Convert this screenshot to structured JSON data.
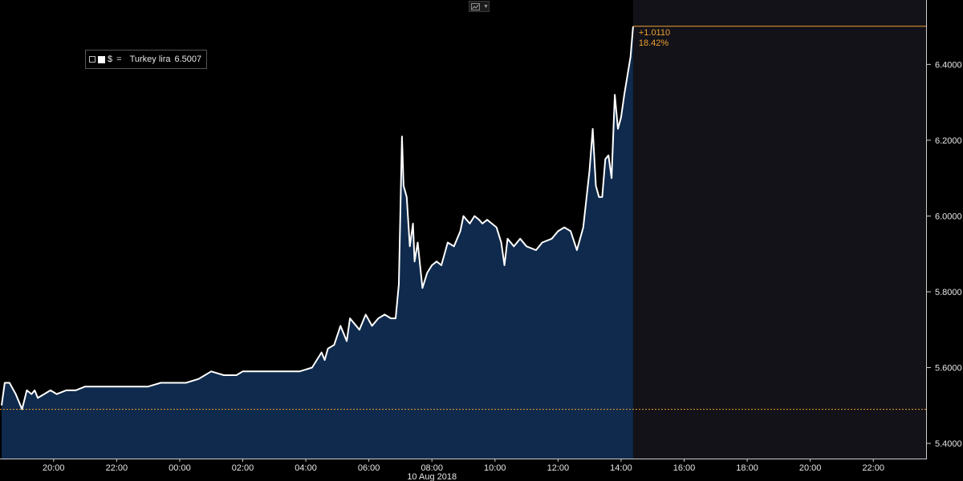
{
  "toolbar": {
    "chart_type_icon": "line-chart-icon",
    "dropdown_icon": "chevron-down-icon"
  },
  "legend": {
    "toggle_icon": "expand-icon",
    "series_color": "#ffffff",
    "symbol": "$",
    "equals": "=",
    "name": "Turkey lira",
    "value": "6.5007"
  },
  "chart_data": {
    "type": "area",
    "title": "",
    "xlabel": "",
    "ylabel": "",
    "date_label": "10 Aug 2018",
    "x_ticks": [
      "20:00",
      "22:00",
      "00:00",
      "02:00",
      "04:00",
      "06:00",
      "08:00",
      "10:00",
      "12:00",
      "14:00",
      "16:00",
      "18:00",
      "20:00",
      "22:00"
    ],
    "x_tick_hours": [
      20,
      22,
      24,
      26,
      28,
      30,
      32,
      34,
      36,
      38,
      40,
      42,
      44,
      46
    ],
    "xlim_hours": [
      18.3,
      47.7
    ],
    "y_ticks": [
      "5.4000",
      "5.6000",
      "5.8000",
      "6.0000",
      "6.2000",
      "6.4000"
    ],
    "y_tick_values": [
      5.4,
      5.6,
      5.8,
      6.0,
      6.2,
      6.4
    ],
    "ylim": [
      5.36,
      6.57
    ],
    "grid": false,
    "colors": {
      "line": "#ffffff",
      "fill": "#0f2a4c",
      "future_bg": "#121218",
      "reference": "#f0a030",
      "axis_text": "#e6e6e6"
    },
    "reference_value": 5.4897,
    "last_value": 6.5007,
    "annotation": {
      "change": "+1.0110",
      "percent": "18.42%"
    },
    "series": [
      {
        "name": "Turkey lira",
        "x": [
          18.35,
          18.45,
          18.6,
          18.8,
          19.0,
          19.15,
          19.3,
          19.4,
          19.5,
          19.7,
          19.9,
          20.1,
          20.4,
          20.7,
          21.0,
          21.4,
          21.8,
          22.2,
          22.6,
          23.0,
          23.4,
          23.8,
          24.2,
          24.6,
          25.0,
          25.4,
          25.8,
          26.0,
          26.2,
          26.5,
          26.8,
          27.0,
          27.4,
          27.8,
          28.2,
          28.5,
          28.6,
          28.7,
          28.9,
          29.1,
          29.3,
          29.4,
          29.5,
          29.7,
          29.9,
          30.1,
          30.3,
          30.5,
          30.7,
          30.85,
          30.95,
          31.05,
          31.1,
          31.2,
          31.3,
          31.4,
          31.45,
          31.55,
          31.7,
          31.85,
          32.0,
          32.15,
          32.3,
          32.5,
          32.7,
          32.9,
          33.0,
          33.1,
          33.2,
          33.35,
          33.5,
          33.6,
          33.75,
          33.9,
          34.05,
          34.2,
          34.3,
          34.4,
          34.6,
          34.8,
          35.0,
          35.3,
          35.5,
          35.8,
          36.0,
          36.2,
          36.4,
          36.6,
          36.8,
          37.0,
          37.1,
          37.2,
          37.3,
          37.4,
          37.5,
          37.6,
          37.7,
          37.8,
          37.9,
          38.0,
          38.1,
          38.2,
          38.3,
          38.38
        ],
        "y": [
          5.5,
          5.56,
          5.56,
          5.53,
          5.49,
          5.54,
          5.53,
          5.54,
          5.52,
          5.53,
          5.54,
          5.53,
          5.54,
          5.54,
          5.55,
          5.55,
          5.55,
          5.55,
          5.55,
          5.55,
          5.56,
          5.56,
          5.56,
          5.57,
          5.59,
          5.58,
          5.58,
          5.59,
          5.59,
          5.59,
          5.59,
          5.59,
          5.59,
          5.59,
          5.6,
          5.64,
          5.62,
          5.65,
          5.66,
          5.71,
          5.67,
          5.73,
          5.72,
          5.7,
          5.74,
          5.71,
          5.73,
          5.74,
          5.73,
          5.73,
          5.82,
          6.21,
          6.08,
          6.05,
          5.92,
          5.98,
          5.88,
          5.93,
          5.81,
          5.85,
          5.87,
          5.88,
          5.87,
          5.93,
          5.92,
          5.96,
          6.0,
          5.99,
          5.98,
          6.0,
          5.99,
          5.98,
          5.99,
          5.98,
          5.97,
          5.93,
          5.87,
          5.94,
          5.92,
          5.94,
          5.92,
          5.91,
          5.93,
          5.94,
          5.96,
          5.97,
          5.96,
          5.91,
          5.97,
          6.12,
          6.23,
          6.08,
          6.05,
          6.05,
          6.15,
          6.16,
          6.1,
          6.32,
          6.23,
          6.26,
          6.32,
          6.37,
          6.42,
          6.5
        ]
      }
    ]
  }
}
